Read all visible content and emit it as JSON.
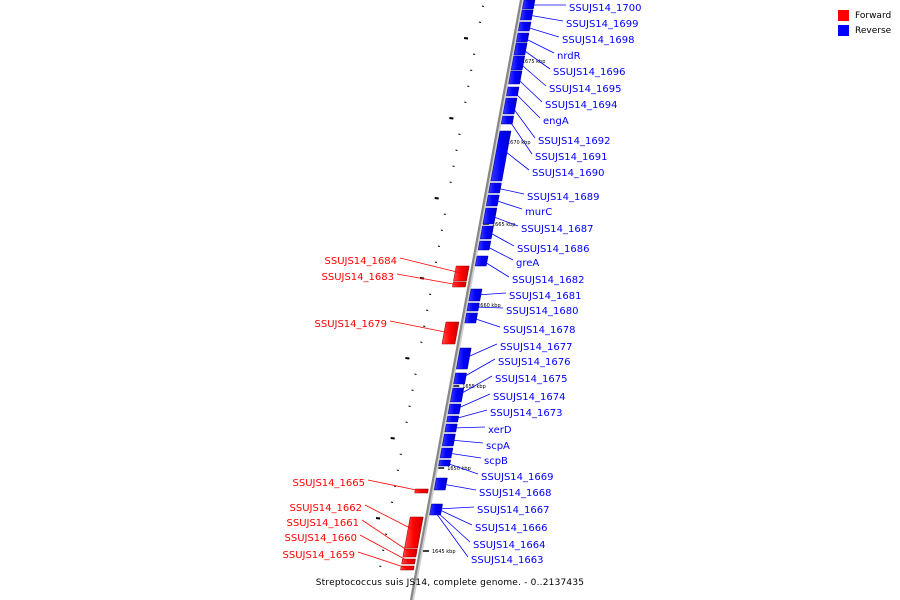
{
  "caption": "Streptococcus suis JS14, complete genome. - 0..2137435",
  "legend": [
    {
      "label": "Forward",
      "color": "#ff0000"
    },
    {
      "label": "Reverse",
      "color": "#0000ff"
    }
  ],
  "colors": {
    "forward": "#ff0000",
    "reverse": "#0000ff",
    "backbone": "#888888"
  },
  "scale_labels": [
    "1675 kbp",
    "1670 kbp",
    "1665 kbp",
    "1660 kbp",
    "1655 kbp",
    "1650 kbp",
    "1645 kbp"
  ],
  "genes": {
    "reverse": [
      "SSUJS14_1700",
      "SSUJS14_1699",
      "SSUJS14_1698",
      "nrdR",
      "SSUJS14_1696",
      "SSUJS14_1695",
      "SSUJS14_1694",
      "engA",
      "SSUJS14_1692",
      "SSUJS14_1691",
      "SSUJS14_1690",
      "SSUJS14_1689",
      "murC",
      "SSUJS14_1687",
      "SSUJS14_1686",
      "greA",
      "SSUJS14_1682",
      "SSUJS14_1681",
      "SSUJS14_1680",
      "SSUJS14_1678",
      "SSUJS14_1677",
      "SSUJS14_1676",
      "SSUJS14_1675",
      "SSUJS14_1674",
      "SSUJS14_1673",
      "xerD",
      "scpA",
      "scpB",
      "SSUJS14_1669",
      "SSUJS14_1668",
      "SSUJS14_1667",
      "SSUJS14_1666",
      "SSUJS14_1664",
      "SSUJS14_1663"
    ],
    "forward": [
      "SSUJS14_1684",
      "SSUJS14_1683",
      "SSUJS14_1679",
      "SSUJS14_1665",
      "SSUJS14_1662",
      "SSUJS14_1661",
      "SSUJS14_1660",
      "SSUJS14_1659"
    ]
  }
}
